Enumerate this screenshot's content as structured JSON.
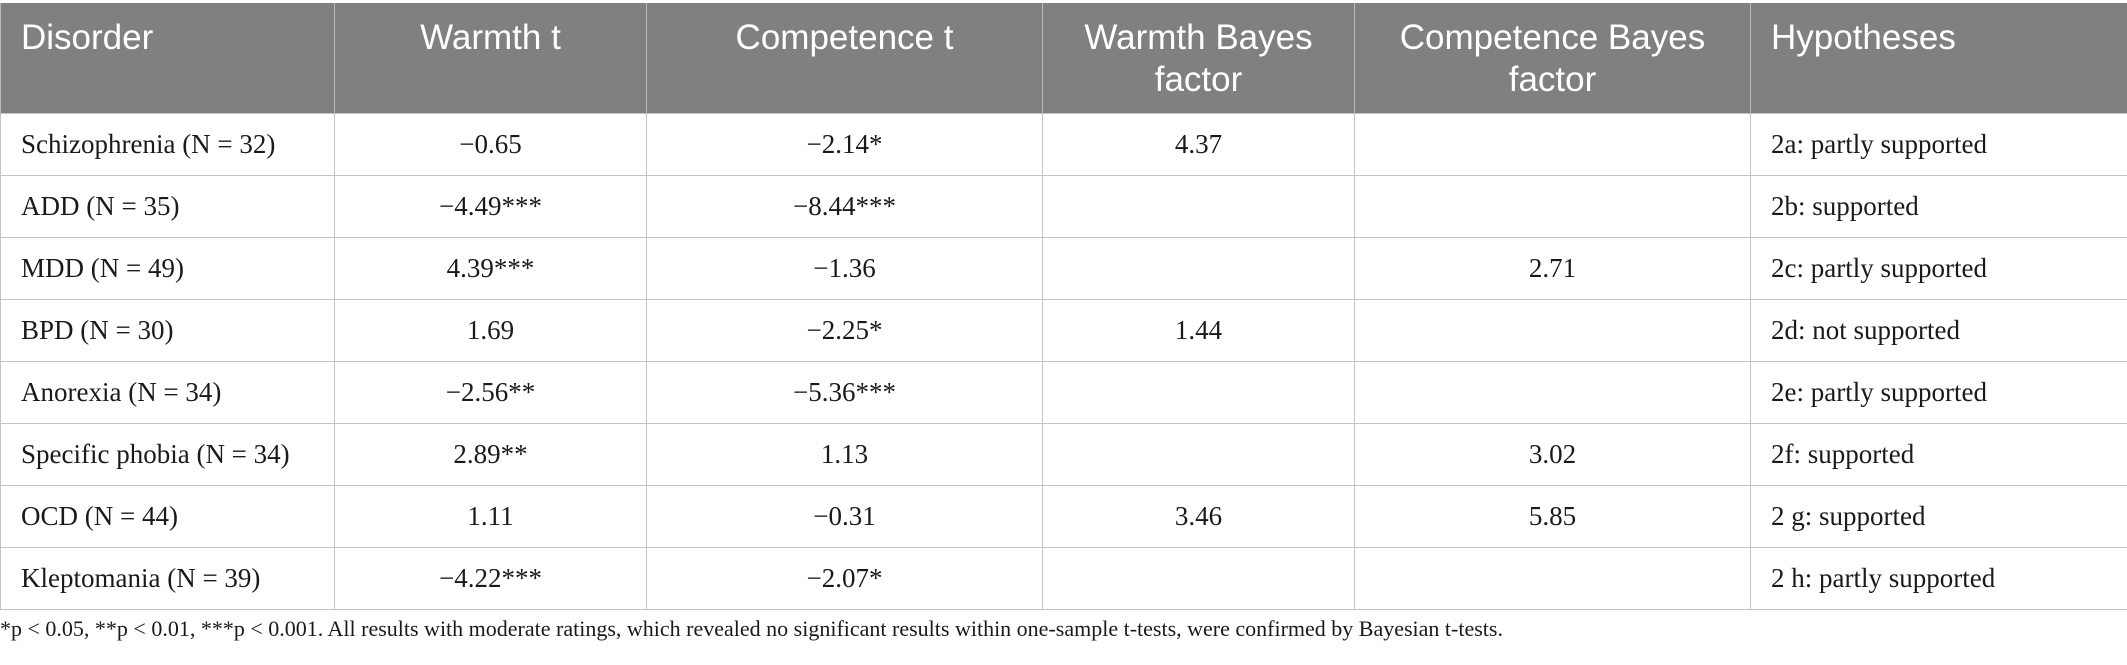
{
  "table": {
    "headers": [
      "Disorder",
      "Warmth t",
      "Competence t",
      "Warmth Bayes factor",
      "Competence Bayes factor",
      "Hypotheses"
    ],
    "rows": [
      {
        "disorder": "Schizophrenia (N = 32)",
        "warmth_t": "−0.65",
        "competence_t": "−2.14*",
        "warmth_bf": "4.37",
        "competence_bf": "",
        "hypothesis": "2a: partly supported"
      },
      {
        "disorder": "ADD (N = 35)",
        "warmth_t": "−4.49***",
        "competence_t": "−8.44***",
        "warmth_bf": "",
        "competence_bf": "",
        "hypothesis": "2b: supported"
      },
      {
        "disorder": "MDD (N = 49)",
        "warmth_t": "4.39***",
        "competence_t": "−1.36",
        "warmth_bf": "",
        "competence_bf": "2.71",
        "hypothesis": "2c: partly supported"
      },
      {
        "disorder": "BPD (N = 30)",
        "warmth_t": "1.69",
        "competence_t": "−2.25*",
        "warmth_bf": "1.44",
        "competence_bf": "",
        "hypothesis": "2d: not supported"
      },
      {
        "disorder": "Anorexia (N = 34)",
        "warmth_t": "−2.56**",
        "competence_t": "−5.36***",
        "warmth_bf": "",
        "competence_bf": "",
        "hypothesis": "2e: partly supported"
      },
      {
        "disorder": "Specific phobia (N = 34)",
        "warmth_t": "2.89**",
        "competence_t": "1.13",
        "warmth_bf": "",
        "competence_bf": "3.02",
        "hypothesis": "2f: supported"
      },
      {
        "disorder": "OCD (N = 44)",
        "warmth_t": "1.11",
        "competence_t": "−0.31",
        "warmth_bf": "3.46",
        "competence_bf": "5.85",
        "hypothesis": "2 g: supported"
      },
      {
        "disorder": "Kleptomania (N = 39)",
        "warmth_t": "−4.22***",
        "competence_t": "−2.07*",
        "warmth_bf": "",
        "competence_bf": "",
        "hypothesis": "2 h: partly supported"
      }
    ]
  },
  "footnote": "*p < 0.05, **p < 0.01, ***p < 0.001. All results with moderate ratings, which revealed no significant results within one-sample t-tests, were confirmed by Bayesian t-tests.",
  "colors": {
    "header_background": "#808080",
    "header_text": "#ffffff",
    "grid_line": "#c4c4c4"
  }
}
